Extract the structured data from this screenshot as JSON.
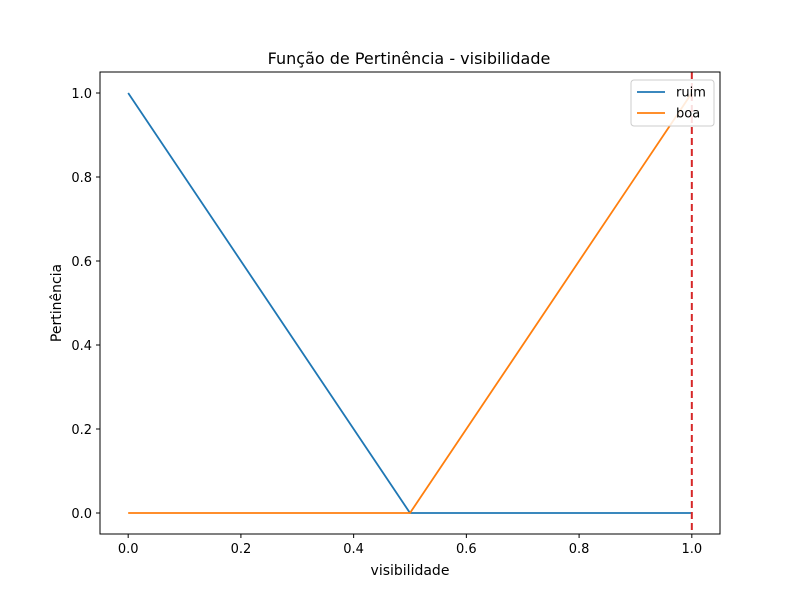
{
  "chart_data": {
    "type": "line",
    "title": "Função de Pertinência - visibilidade",
    "xlabel": "visibilidade",
    "ylabel": "Pertinência",
    "xlim": [
      -0.05,
      1.05
    ],
    "ylim": [
      -0.05,
      1.05
    ],
    "xticks": [
      0.0,
      0.2,
      0.4,
      0.6,
      0.8,
      1.0
    ],
    "xtick_labels": [
      "0.0",
      "0.2",
      "0.4",
      "0.6",
      "0.8",
      "1.0"
    ],
    "yticks": [
      0.0,
      0.2,
      0.4,
      0.6,
      0.8,
      1.0
    ],
    "ytick_labels": [
      "0.0",
      "0.2",
      "0.4",
      "0.6",
      "0.8",
      "1.0"
    ],
    "grid": false,
    "legend_position": "top-right",
    "series": [
      {
        "name": "ruim",
        "color": "#1f77b4",
        "x": [
          0.0,
          0.5,
          1.0
        ],
        "y": [
          1.0,
          0.0,
          0.0
        ]
      },
      {
        "name": "boa",
        "color": "#ff7f0e",
        "x": [
          0.0,
          0.5,
          1.0
        ],
        "y": [
          0.0,
          0.0,
          1.0
        ]
      }
    ],
    "vline": {
      "x": 1.0,
      "color": "#d62728",
      "style": "dashed"
    }
  }
}
